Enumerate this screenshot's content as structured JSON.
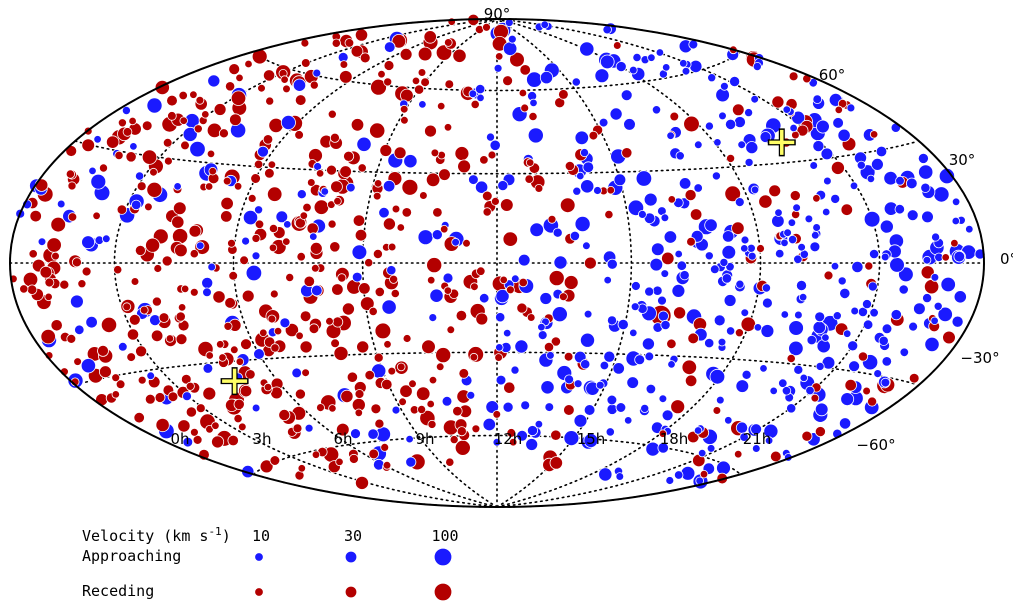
{
  "chart_data": {
    "type": "scatter",
    "projection": "Hammer-Aitoff all-sky",
    "background_color": "#ffffff",
    "series": [
      {
        "name": "Approaching",
        "color": "#1a1aff"
      },
      {
        "name": "Receding",
        "color": "#b30000"
      }
    ],
    "ra_labels": [
      "0h",
      "3h",
      "6h",
      "9h",
      "12h",
      "15h",
      "18h",
      "21h"
    ],
    "dec_labels": [
      {
        "dec": 90,
        "text": "90°"
      },
      {
        "dec": 60,
        "text": "60°"
      },
      {
        "dec": 30,
        "text": "30°"
      },
      {
        "dec": 0,
        "text": "0°"
      },
      {
        "dec": -30,
        "text": "−30°"
      },
      {
        "dec": -60,
        "text": "−60°"
      }
    ],
    "crosses": [
      {
        "ra_h": 19.9,
        "dec": 36
      },
      {
        "ra_h": 4.8,
        "dec": -36
      }
    ],
    "highlight_points": [
      {
        "ra_h": 15.8,
        "dec": -17,
        "velocity": 150,
        "series": "Receding"
      },
      {
        "ra_h": 15.6,
        "dec": -49,
        "velocity": 20,
        "series": "Approaching"
      },
      {
        "ra_h": 22.0,
        "dec": -41,
        "velocity": 40,
        "series": "Approaching"
      }
    ],
    "legend": {
      "title": "Velocity (km s",
      "title_sup": "-1",
      "title_close": ")",
      "sizes": [
        {
          "value": 10,
          "label": "10"
        },
        {
          "value": 30,
          "label": "30"
        },
        {
          "value": 100,
          "label": "100"
        }
      ],
      "rows": [
        {
          "label": "Approaching",
          "color": "#1a1aff"
        },
        {
          "label": "Receding",
          "color": "#b30000"
        }
      ]
    }
  }
}
